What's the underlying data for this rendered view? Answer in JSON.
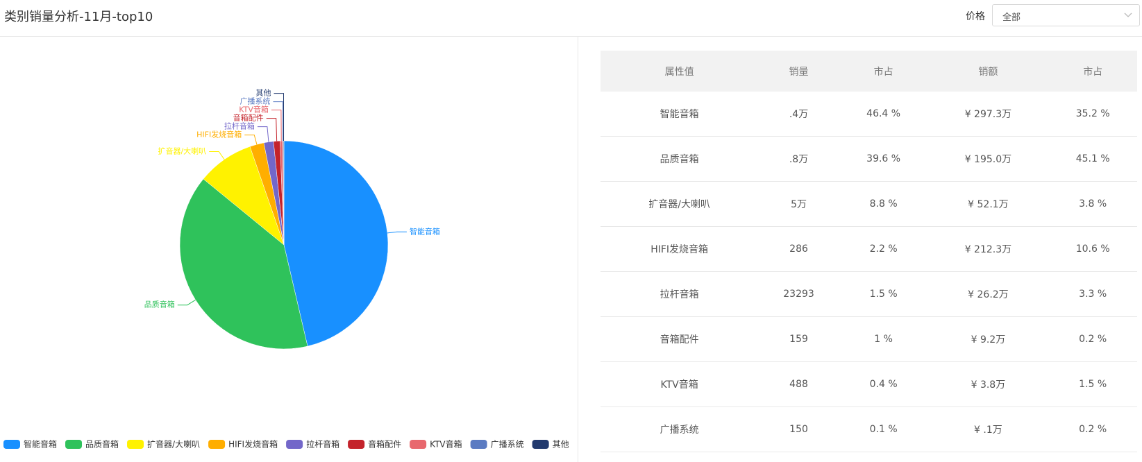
{
  "header": {
    "title": "类别销量分析-11月-top10",
    "filter_label": "价格",
    "filter_value": "全部"
  },
  "chart_data": {
    "type": "pie",
    "categories": [
      "智能音箱",
      "品质音箱",
      "扩音器/大喇叭",
      "HIFI发烧音箱",
      "拉杆音箱",
      "音箱配件",
      "KTV音箱",
      "广播系统",
      "其他"
    ],
    "values": [
      46.4,
      39.6,
      8.8,
      2.2,
      1.5,
      1,
      0.4,
      0.1,
      0.1
    ],
    "colors": [
      "#1890ff",
      "#2fc25b",
      "#fff200",
      "#ffae00",
      "#7367c9",
      "#c4232b",
      "#e8686e",
      "#5b7bc2",
      "#223a6e"
    ]
  },
  "table": {
    "headers": [
      "属性值",
      "销量",
      "市占",
      "销额",
      "市占"
    ],
    "rows": [
      [
        "智能音箱",
        ".4万",
        "46.4 %",
        "¥ 297.3万",
        "35.2 %"
      ],
      [
        "品质音箱",
        ".8万",
        "39.6 %",
        "¥ 195.0万",
        "45.1 %"
      ],
      [
        "扩音器/大喇叭",
        "5万",
        "8.8 %",
        "¥ 52.1万",
        "3.8 %"
      ],
      [
        "HIFI发烧音箱",
        "286",
        "2.2 %",
        "¥ 212.3万",
        "10.6 %"
      ],
      [
        "拉杆音箱",
        "23293",
        "1.5 %",
        "¥ 26.2万",
        "3.3 %"
      ],
      [
        "音箱配件",
        "159",
        "1 %",
        "¥ 9.2万",
        "0.2 %"
      ],
      [
        "KTV音箱",
        "488",
        "0.4 %",
        "¥ 3.8万",
        "1.5 %"
      ],
      [
        "广播系统",
        "150",
        "0.1 %",
        "¥ .1万",
        "0.2 %"
      ]
    ]
  }
}
